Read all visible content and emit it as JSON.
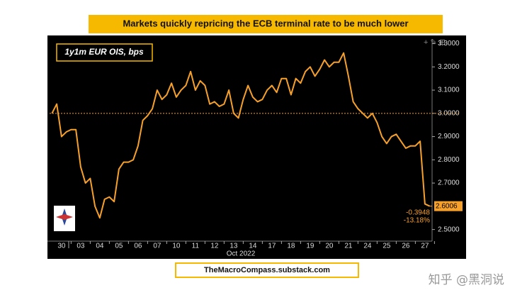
{
  "chart_data": {
    "type": "line",
    "title": "Markets quickly repricing the ECB terminal rate to be much lower",
    "legend_label": "1y1m EUR OIS, bps",
    "x_label": "Oct 2022",
    "source": "TheMacroCompass.substack.com",
    "watermark": "知乎 @黑洞说",
    "annotations": [
      "-0.3948",
      "-13.18%"
    ],
    "reference_line": 3.0,
    "categories": [
      null,
      null,
      "30",
      null,
      null,
      null,
      "03",
      null,
      null,
      null,
      "04",
      null,
      null,
      null,
      "05",
      null,
      null,
      null,
      "06",
      null,
      null,
      null,
      "07",
      null,
      null,
      null,
      "10",
      null,
      null,
      null,
      "11",
      null,
      null,
      null,
      "12",
      null,
      null,
      null,
      "13",
      null,
      null,
      null,
      "14",
      null,
      null,
      null,
      "17",
      null,
      null,
      null,
      "18",
      null,
      null,
      null,
      "19",
      null,
      null,
      null,
      "20",
      null,
      null,
      null,
      "21",
      null,
      null,
      null,
      "24",
      null,
      null,
      null,
      "25",
      null,
      null,
      null,
      "26",
      null,
      null,
      null,
      "27",
      null
    ],
    "series": [
      {
        "name": "1y1m EUR OIS",
        "color": "#f7a12b",
        "values": [
          3.0,
          3.04,
          2.9,
          2.92,
          2.93,
          2.93,
          2.77,
          2.7,
          2.72,
          2.6,
          2.55,
          2.63,
          2.64,
          2.62,
          2.76,
          2.79,
          2.79,
          2.8,
          2.86,
          2.97,
          2.99,
          3.02,
          3.1,
          3.06,
          3.08,
          3.13,
          3.07,
          3.1,
          3.12,
          3.18,
          3.1,
          3.14,
          3.12,
          3.04,
          3.05,
          3.03,
          3.04,
          3.1,
          3.0,
          2.98,
          3.06,
          3.12,
          3.07,
          3.05,
          3.06,
          3.1,
          3.12,
          3.09,
          3.15,
          3.15,
          3.08,
          3.15,
          3.13,
          3.18,
          3.2,
          3.16,
          3.19,
          3.23,
          3.2,
          3.22,
          3.22,
          3.26,
          3.16,
          3.05,
          3.02,
          3.0,
          2.98,
          3.0,
          2.96,
          2.9,
          2.87,
          2.9,
          2.91,
          2.88,
          2.85,
          2.86,
          2.86,
          2.88,
          2.61,
          2.6006
        ]
      }
    ],
    "ylim": [
      2.45,
      3.32
    ],
    "yticks": [
      {
        "value": 2.5,
        "label": "2.5000"
      },
      {
        "value": 2.7,
        "label": "2.7000"
      },
      {
        "value": 2.8,
        "label": "2.8000"
      },
      {
        "value": 2.9,
        "label": "2.9000"
      },
      {
        "value": 3.0,
        "label": "3.0000"
      },
      {
        "value": 3.1,
        "label": "3.1000"
      },
      {
        "value": 3.2,
        "label": "3.2000"
      },
      {
        "value": 3.3,
        "label": "3.3000"
      }
    ],
    "grid": false
  }
}
